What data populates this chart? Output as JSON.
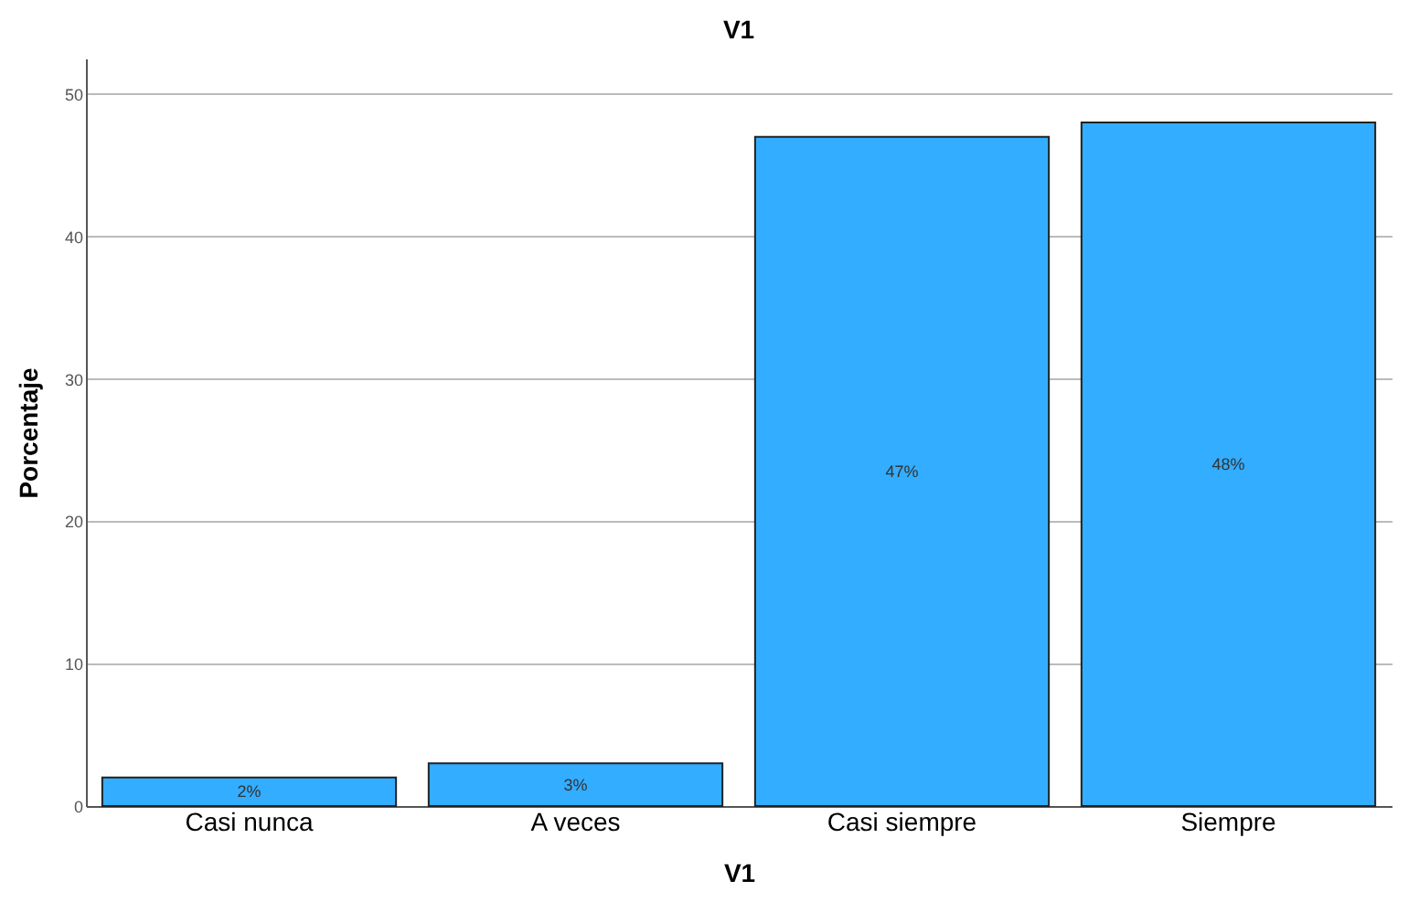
{
  "chart_data": {
    "type": "bar",
    "title": "V1",
    "xlabel": "V1",
    "ylabel": "Porcentaje",
    "categories": [
      "Casi nunca",
      "A veces",
      "Casi siempre",
      "Siempre"
    ],
    "values": [
      2,
      3,
      47,
      48
    ],
    "value_labels": [
      "2%",
      "3%",
      "47%",
      "48%"
    ],
    "color": "#33adff",
    "ylim": [
      0,
      52.5
    ],
    "yticks": [
      0,
      10,
      20,
      30,
      40,
      50
    ],
    "grid": "y"
  }
}
